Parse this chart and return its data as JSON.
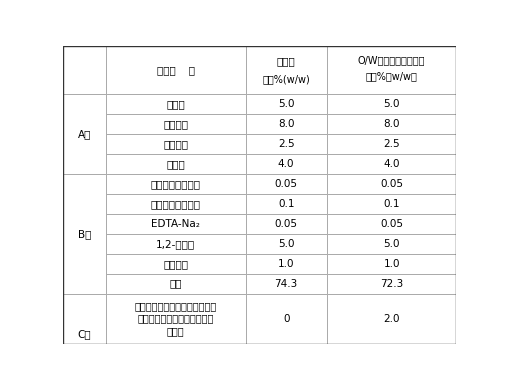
{
  "col_headers_line1": [
    "",
    "",
    "对照样",
    "O/W乳液型防晒化妆品"
  ],
  "col_headers_line2": [
    "",
    "原料组    分",
    "含量%(w/w)",
    "含量%（w/w）"
  ],
  "rows": [
    {
      "phase": "A相",
      "ingredient": "羊毛脂",
      "ref": "5.0",
      "ow": "5.0",
      "phase_start": true,
      "phase_rows": 4
    },
    {
      "phase": "",
      "ingredient": "胡真柳酯",
      "ref": "8.0",
      "ow": "8.0",
      "phase_start": false,
      "phase_rows": 0
    },
    {
      "phase": "",
      "ingredient": "白凡士林",
      "ref": "2.5",
      "ow": "2.5",
      "phase_start": false,
      "phase_rows": 0
    },
    {
      "phase": "",
      "ingredient": "硬脂酸",
      "ref": "4.0",
      "ow": "4.0",
      "phase_start": false,
      "phase_rows": 0
    },
    {
      "phase": "B相",
      "ingredient": "对羟基苯甲酸丙酯",
      "ref": "0.05",
      "ow": "0.05",
      "phase_start": true,
      "phase_rows": 6
    },
    {
      "phase": "",
      "ingredient": "对羟基苯甲酸甲酯",
      "ref": "0.1",
      "ow": "0.1",
      "phase_start": false,
      "phase_rows": 0
    },
    {
      "phase": "",
      "ingredient": "EDTA-Na₂",
      "ref": "0.05",
      "ow": "0.05",
      "phase_start": false,
      "phase_rows": 0
    },
    {
      "phase": "",
      "ingredient": "1,2-丙二醇",
      "ref": "5.0",
      "ow": "5.0",
      "phase_start": false,
      "phase_rows": 0
    },
    {
      "phase": "",
      "ingredient": "三乙醇胺",
      "ref": "1.0",
      "ow": "1.0",
      "phase_start": false,
      "phase_rows": 0
    },
    {
      "phase": "",
      "ingredient": "纯水",
      "ref": "74.3",
      "ow": "72.3",
      "phase_start": false,
      "phase_rows": 0
    },
    {
      "phase": "C相",
      "ingredient": "实施例３中所得负载脂溶性防晒\n剂的甲基丙烯酸甲酯交联聚合\n物微粒",
      "ref": "0",
      "ow": "2.0",
      "phase_start": true,
      "phase_rows": 1
    }
  ],
  "background": "#ffffff",
  "border_color": "#aaaaaa",
  "text_color": "#000000",
  "font_size": 7.5,
  "header_font_size": 7.5
}
